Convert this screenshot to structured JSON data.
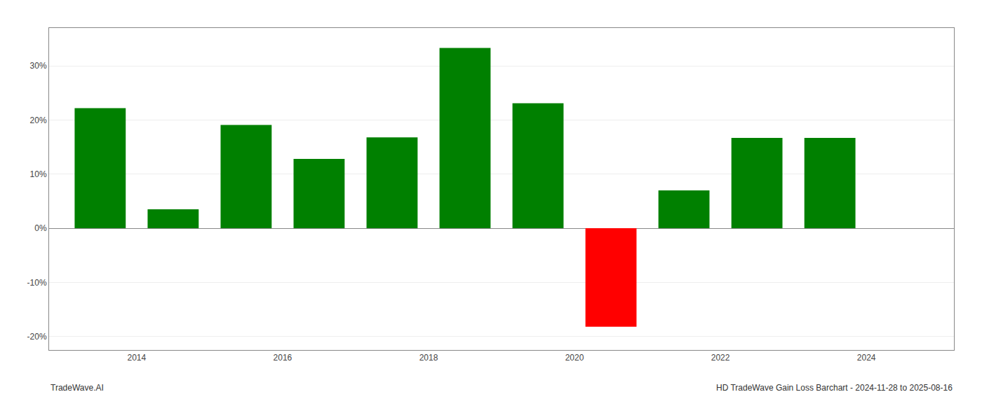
{
  "chart_data": {
    "type": "bar",
    "x": [
      2013.5,
      2014.5,
      2015.5,
      2016.5,
      2017.5,
      2018.5,
      2019.5,
      2020.5,
      2021.5,
      2022.5,
      2023.5
    ],
    "values": [
      0.222,
      0.035,
      0.191,
      0.128,
      0.168,
      0.333,
      0.231,
      -0.182,
      0.07,
      0.167,
      0.167
    ],
    "colors": [
      "#008000",
      "#008000",
      "#008000",
      "#008000",
      "#008000",
      "#008000",
      "#008000",
      "#ff0000",
      "#008000",
      "#008000",
      "#008000"
    ],
    "xlim": [
      2012.8,
      2025.2
    ],
    "xticks": [
      2014,
      2016,
      2018,
      2020,
      2022,
      2024
    ],
    "ylim": [
      -0.225,
      0.37
    ],
    "yticks": [
      {
        "value": -0.2,
        "label": "-20%"
      },
      {
        "value": -0.1,
        "label": "-10%"
      },
      {
        "value": 0.0,
        "label": "0%"
      },
      {
        "value": 0.1,
        "label": "10%"
      },
      {
        "value": 0.2,
        "label": "20%"
      },
      {
        "value": 0.3,
        "label": "30%"
      }
    ],
    "grid": true,
    "annotations": [
      "TradeWave.AI",
      "HD TradeWave Gain Loss Barchart - 2024-11-28 to 2025-08-16"
    ]
  }
}
